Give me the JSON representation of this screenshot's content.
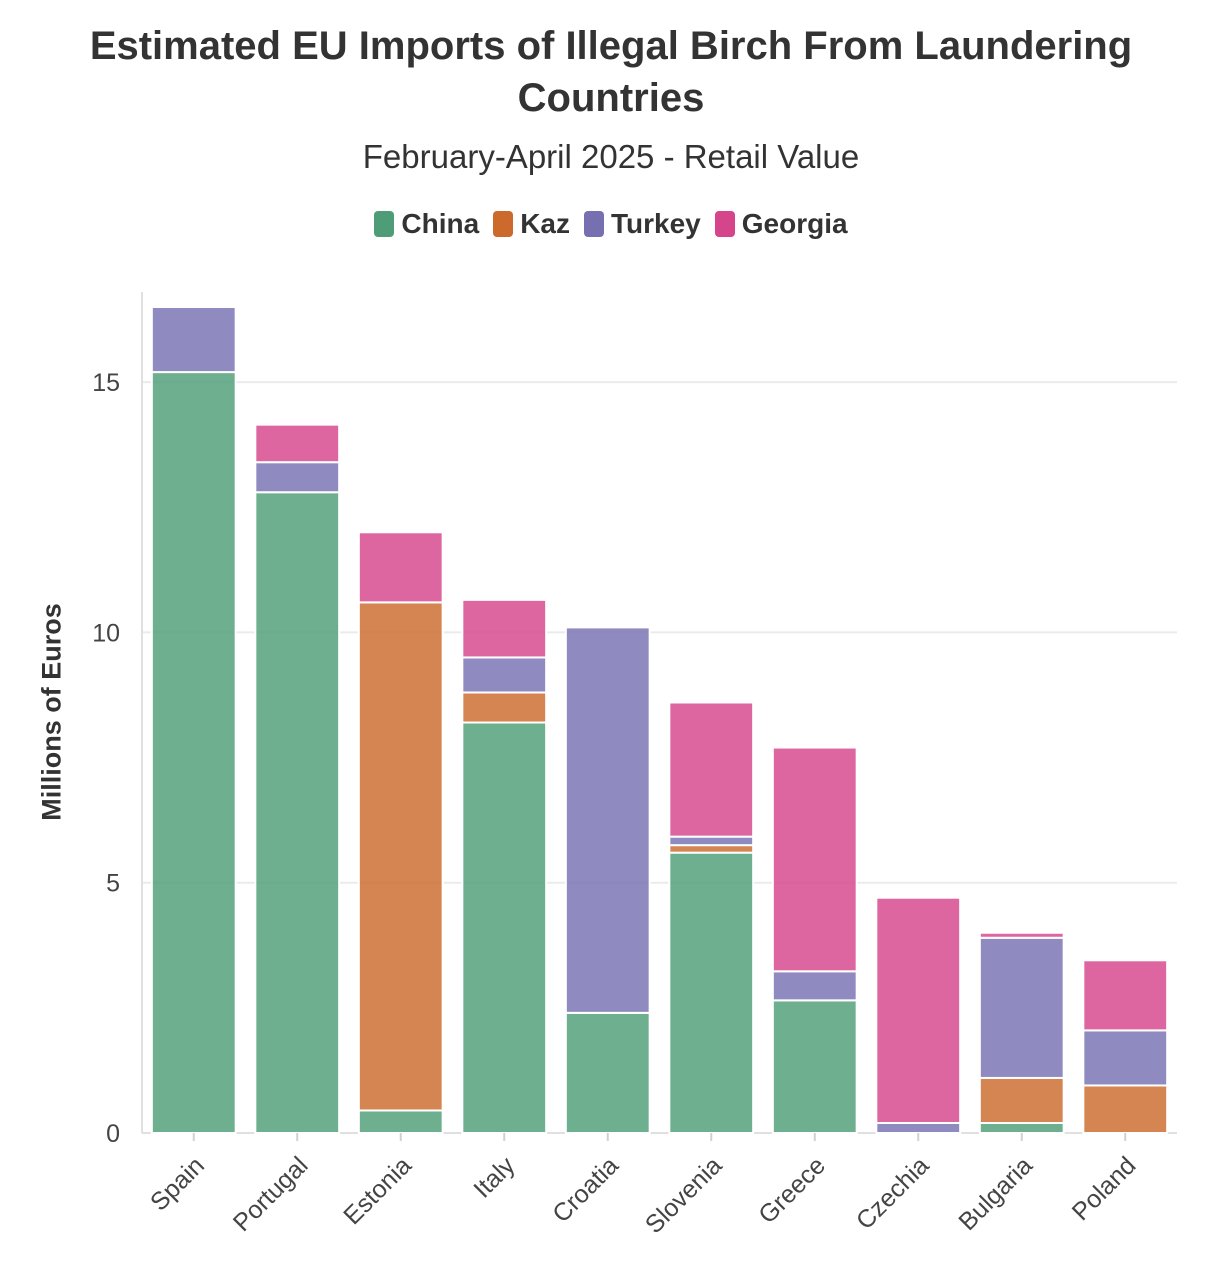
{
  "chart_data": {
    "type": "bar",
    "stacked": true,
    "title": "Estimated EU Imports of Illegal Birch From Laundering Countries",
    "subtitle": "February-April 2025 - Retail Value",
    "ylabel": "Millions of Euros",
    "xlabel": "",
    "ylim": [
      0,
      16.8
    ],
    "yticks": [
      0,
      5,
      10,
      15
    ],
    "grid": true,
    "legend_position": "top-center",
    "categories": [
      "Spain",
      "Portugal",
      "Estonia",
      "Italy",
      "Croatia",
      "Slovenia",
      "Greece",
      "Czechia",
      "Bulgaria",
      "Poland"
    ],
    "series": [
      {
        "name": "China",
        "color": "#4e9d78",
        "values": [
          15.2,
          12.8,
          0.45,
          8.2,
          2.4,
          5.6,
          2.65,
          0,
          0.2,
          0
        ]
      },
      {
        "name": "Kaz",
        "color": "#cb6a2c",
        "values": [
          0,
          0,
          10.15,
          0.6,
          0,
          0.15,
          0,
          0,
          0.9,
          0.95
        ]
      },
      {
        "name": "Turkey",
        "color": "#7670b1",
        "values": [
          1.3,
          0.6,
          0,
          0.7,
          7.7,
          0.17,
          0.58,
          0.2,
          2.8,
          1.1
        ]
      },
      {
        "name": "Georgia",
        "color": "#d6448c",
        "values": [
          0,
          0.75,
          1.4,
          1.15,
          0,
          2.68,
          4.47,
          4.5,
          0.1,
          1.4
        ]
      }
    ]
  }
}
